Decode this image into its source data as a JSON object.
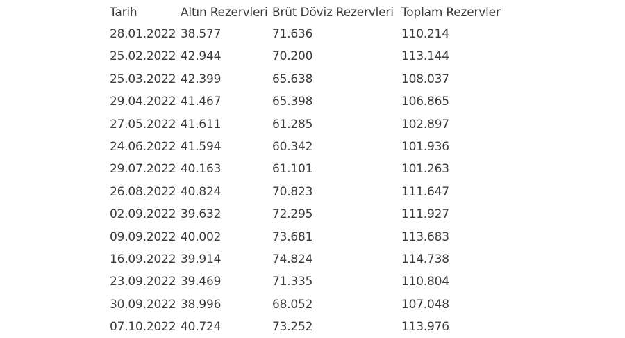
{
  "table": {
    "header": [
      "Tarih",
      "Altın Rezervleri",
      "Brüt Döviz Rezervleri",
      "Toplam Rezervler"
    ],
    "rows": [
      [
        "28.01.2022",
        "38.577",
        "71.636",
        "110.214"
      ],
      [
        "25.02.2022",
        "42.944",
        "70.200",
        "113.144"
      ],
      [
        "25.03.2022",
        "42.399",
        "65.638",
        "108.037"
      ],
      [
        "29.04.2022",
        "41.467",
        "65.398",
        "106.865"
      ],
      [
        "27.05.2022",
        "41.611",
        "61.285",
        "102.897"
      ],
      [
        "24.06.2022",
        "41.594",
        "60.342",
        "101.936"
      ],
      [
        "29.07.2022",
        "40.163",
        "61.101",
        "101.263"
      ],
      [
        "26.08.2022",
        "40.824",
        "70.823",
        "111.647"
      ],
      [
        "02.09.2022",
        "39.632",
        "72.295",
        "111.927"
      ],
      [
        "09.09.2022",
        "40.002",
        "73.681",
        "113.683"
      ],
      [
        "16.09.2022",
        "39.914",
        "74.824",
        "114.738"
      ],
      [
        "23.09.2022",
        "39.469",
        "71.335",
        "110.804"
      ],
      [
        "30.09.2022",
        "38.996",
        "68.052",
        "107.048"
      ],
      [
        "07.10.2022",
        "40.724",
        "73.252",
        "113.976"
      ]
    ]
  }
}
